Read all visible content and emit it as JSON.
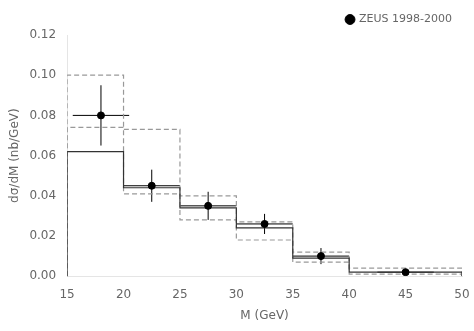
{
  "chart_data": {
    "type": "scatter",
    "xlabel": "M (GeV)",
    "ylabel": "dσ/dM (nb/GeV)",
    "xlim": [
      15,
      50
    ],
    "ylim": [
      0,
      0.12
    ],
    "xticks": [
      15,
      20,
      25,
      30,
      35,
      40,
      45,
      50
    ],
    "yticks": [
      {
        "value": 0,
        "label": "0.00"
      },
      0.02,
      0.04,
      0.06,
      0.08,
      {
        "value": 0.1,
        "label": "0.10"
      },
      0.12
    ],
    "grid": false,
    "legend": "upper right",
    "bins": [
      15,
      20,
      25,
      30,
      35,
      40,
      50
    ],
    "series": [
      {
        "name": "ZEUS 1998-2000",
        "type": "scatter",
        "marker": "circle",
        "color": "#000000",
        "x": [
          18,
          22.5,
          27.5,
          32.5,
          37.5,
          45.0
        ],
        "values": [
          0.08,
          0.045,
          0.035,
          0.026,
          0.01,
          0.002
        ],
        "yerr_lo": [
          0.015,
          0.008,
          0.007,
          0.005,
          0.004,
          0.001
        ],
        "yerr_hi": [
          0.015,
          0.008,
          0.007,
          0.005,
          0.004,
          0.001
        ],
        "xerr": [
          2.5,
          2.5,
          2.5,
          2.5,
          2.5,
          2.5
        ]
      },
      {
        "type": "step",
        "line_style": "solid",
        "color": "#333333",
        "values": [
          0.062,
          0.044,
          0.034,
          0.024,
          0.009,
          0.002
        ]
      },
      {
        "type": "step",
        "line_style": "dashed",
        "color": "#999999",
        "values": [
          0.1,
          0.073,
          0.04,
          0.027,
          0.012,
          0.004
        ]
      },
      {
        "type": "step",
        "line_style": "dashed",
        "color": "#999999",
        "values": [
          0.074,
          0.041,
          0.028,
          0.018,
          0.007,
          0.001
        ]
      }
    ]
  }
}
